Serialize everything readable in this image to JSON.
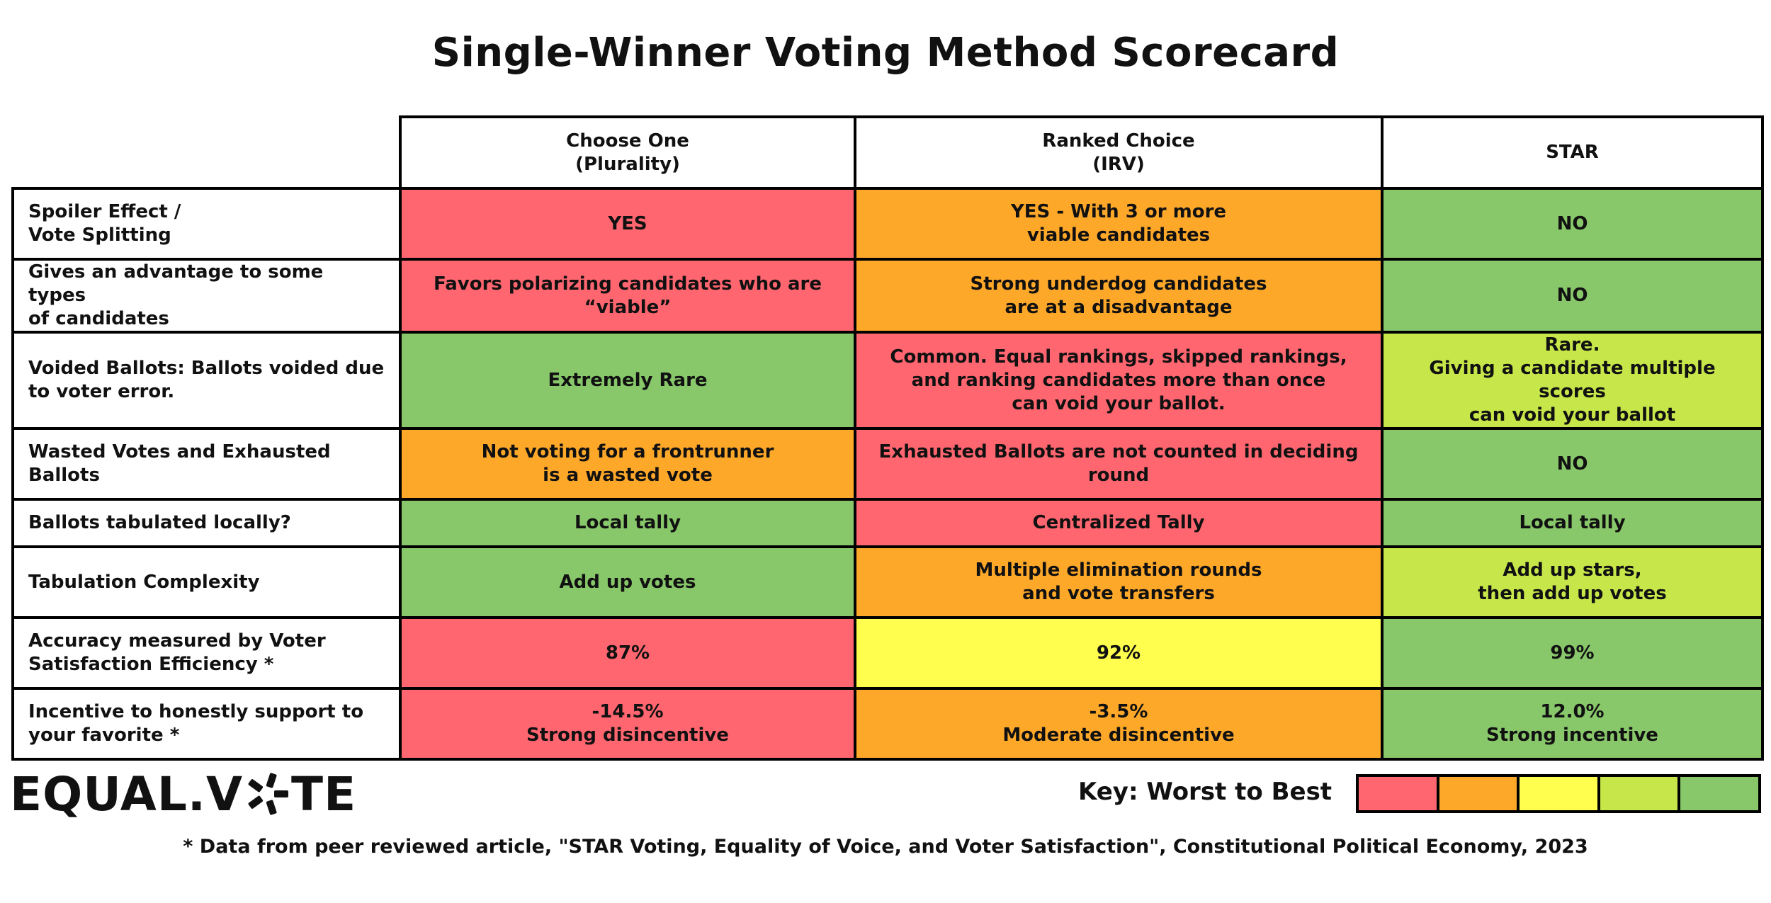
{
  "title": "Single-Winner Voting Method Scorecard",
  "columns": [
    "Choose One\n(Plurality)",
    "Ranked Choice\n(IRV)",
    "STAR"
  ],
  "colors": {
    "red": "#ff6670",
    "orange": "#fea82a",
    "yellow": "#fffd4e",
    "lime": "#c6e64a",
    "green": "#88c76a"
  },
  "rows": [
    {
      "label": "Spoiler Effect /\nVote Splitting",
      "cells": [
        {
          "text": "YES",
          "rating": "red"
        },
        {
          "text": "YES - With 3 or more\nviable candidates",
          "rating": "orange"
        },
        {
          "text": "NO",
          "rating": "green"
        }
      ]
    },
    {
      "label": "Gives an advantage to some types\nof candidates",
      "cells": [
        {
          "text": "Favors polarizing candidates who are\n“viable”",
          "rating": "red"
        },
        {
          "text": "Strong underdog candidates\nare at a disadvantage",
          "rating": "orange"
        },
        {
          "text": "NO",
          "rating": "green"
        }
      ]
    },
    {
      "label": "Voided Ballots: Ballots voided due\nto voter error.",
      "cells": [
        {
          "text": "Extremely Rare",
          "rating": "green"
        },
        {
          "text": "Common. Equal rankings, skipped rankings,\nand ranking candidates more than once\ncan void your ballot.",
          "rating": "red"
        },
        {
          "text": "Rare.\nGiving a candidate multiple scores\ncan void your ballot",
          "rating": "lime"
        }
      ]
    },
    {
      "label": "Wasted Votes and Exhausted\nBallots",
      "cells": [
        {
          "text": "Not voting for a frontrunner\nis a wasted vote",
          "rating": "orange"
        },
        {
          "text": "Exhausted Ballots are not counted in deciding\nround",
          "rating": "red"
        },
        {
          "text": "NO",
          "rating": "green"
        }
      ]
    },
    {
      "label": "Ballots tabulated locally?",
      "cells": [
        {
          "text": "Local tally",
          "rating": "green"
        },
        {
          "text": "Centralized Tally",
          "rating": "red"
        },
        {
          "text": "Local tally",
          "rating": "green"
        }
      ]
    },
    {
      "label": "Tabulation Complexity",
      "cells": [
        {
          "text": "Add up votes",
          "rating": "green"
        },
        {
          "text": "Multiple elimination rounds\nand vote transfers",
          "rating": "orange"
        },
        {
          "text": "Add up stars,\nthen add up votes",
          "rating": "lime"
        }
      ]
    },
    {
      "label": "Accuracy measured by Voter\nSatisfaction Efficiency *",
      "cells": [
        {
          "text": "87%",
          "rating": "red"
        },
        {
          "text": "92%",
          "rating": "yellow"
        },
        {
          "text": "99%",
          "rating": "green"
        }
      ]
    },
    {
      "label": "Incentive to honestly support to\nyour favorite *",
      "cells": [
        {
          "text": "-14.5%\nStrong disincentive",
          "rating": "red"
        },
        {
          "text": "-3.5%\nModerate disincentive",
          "rating": "orange"
        },
        {
          "text": "12.0%\nStrong incentive",
          "rating": "green"
        }
      ]
    }
  ],
  "logo": {
    "before": "EQUAL.V",
    "after": "TE",
    "icon": "star-ballot-icon"
  },
  "key": {
    "label": "Key:  Worst to Best",
    "scale": [
      "red",
      "orange",
      "yellow",
      "lime",
      "green"
    ]
  },
  "footnote": "* Data from peer reviewed article, \"STAR Voting, Equality of Voice, and Voter Satisfaction\", Constitutional Political Economy, 2023"
}
